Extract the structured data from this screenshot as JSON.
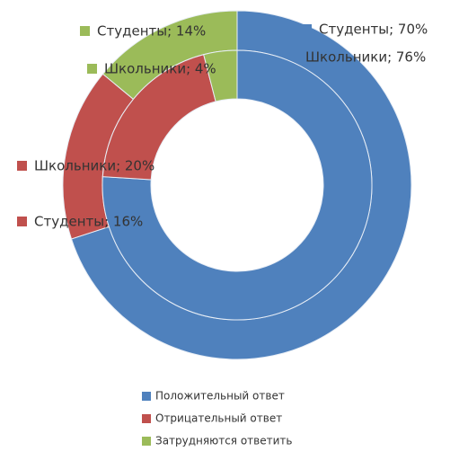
{
  "chart_data": {
    "type": "donut",
    "categories": [
      "Положительный ответ",
      "Отрицательный ответ",
      "Затрудняются ответить"
    ],
    "colors": [
      "#4f81bd",
      "#c0504d",
      "#9bbb59"
    ],
    "series": [
      {
        "name": "Студенты",
        "values": [
          70,
          16,
          14
        ],
        "value_labels": [
          "Студенты; 70%",
          "Студенты; 16%",
          "Студенты; 14%"
        ]
      },
      {
        "name": "Школьники",
        "values": [
          76,
          20,
          4
        ],
        "value_labels": [
          "Школьники; 76%",
          "Школьники; 20%",
          "Школьники; 4%"
        ]
      }
    ],
    "legend": "bottom"
  }
}
